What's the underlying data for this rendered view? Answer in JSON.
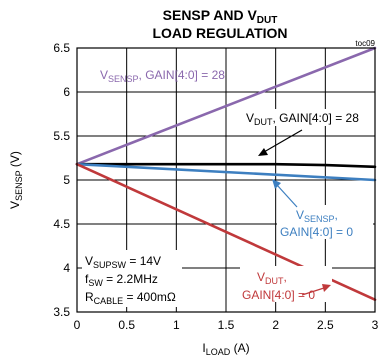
{
  "chart_data": {
    "type": "line",
    "title": {
      "line1_main": "SENSP AND V",
      "line1_sub": "DUT",
      "line2": "LOAD REGULATION"
    },
    "corner_label": "toc09",
    "xlabel": {
      "main": "I",
      "sub": "LOAD",
      "unit": " (A)"
    },
    "ylabel": {
      "main": "V",
      "sub": "SENSP",
      "unit": " (V)"
    },
    "xlim": [
      0,
      3
    ],
    "ylim": [
      3.5,
      6.5
    ],
    "xticks": [
      0,
      0.5,
      1,
      1.5,
      2,
      2.5,
      3
    ],
    "xtick_labels": [
      "0",
      "0.5",
      "1",
      "1.5",
      "2",
      "2.5",
      "3"
    ],
    "yticks": [
      3.5,
      4,
      4.5,
      5,
      5.5,
      6,
      6.5
    ],
    "ytick_labels": [
      "3.5",
      "4",
      "4.5",
      "5",
      "5.5",
      "6",
      "6.5"
    ],
    "grid": true,
    "series": [
      {
        "color": "#8a68ad",
        "x": [
          0,
          3
        ],
        "y": [
          5.18,
          6.5
        ]
      },
      {
        "color": "#000000",
        "x": [
          0,
          0.5,
          1,
          1.5,
          2,
          2.5,
          3
        ],
        "y": [
          5.18,
          5.18,
          5.18,
          5.18,
          5.18,
          5.17,
          5.15
        ]
      },
      {
        "color": "#3d7fc0",
        "x": [
          0,
          3
        ],
        "y": [
          5.18,
          5.0
        ]
      },
      {
        "color": "#c0393b",
        "x": [
          0,
          3
        ],
        "y": [
          5.18,
          3.64
        ]
      }
    ],
    "annotations": {
      "vsensp28": {
        "main": "V",
        "sub": "SENSP",
        "rest": ", GAIN[4:0] = 28",
        "color": "#8a68ad"
      },
      "vdut28": {
        "main": "V",
        "sub": "DUT",
        "rest": ", GAIN[4:0] = 28",
        "color": "#000000"
      },
      "vsensp0": {
        "main": "V",
        "sub": "SENSP",
        "rest": ",",
        "line2": "GAIN[4:0] = 0",
        "color": "#3d7fc0"
      },
      "vdut0": {
        "main": "V",
        "sub": "DUT",
        "rest": ",",
        "line2": "GAIN[4:0] = 0",
        "color": "#c0393b"
      },
      "conditions": {
        "c1": {
          "main": "V",
          "sub": "SUPSW",
          "rest": " = 14V"
        },
        "c2": {
          "main": "f",
          "sub": "SW",
          "rest": " = 2.2MHz"
        },
        "c3": {
          "main": "R",
          "sub": "CABLE",
          "rest": " = 400mΩ"
        }
      }
    }
  }
}
